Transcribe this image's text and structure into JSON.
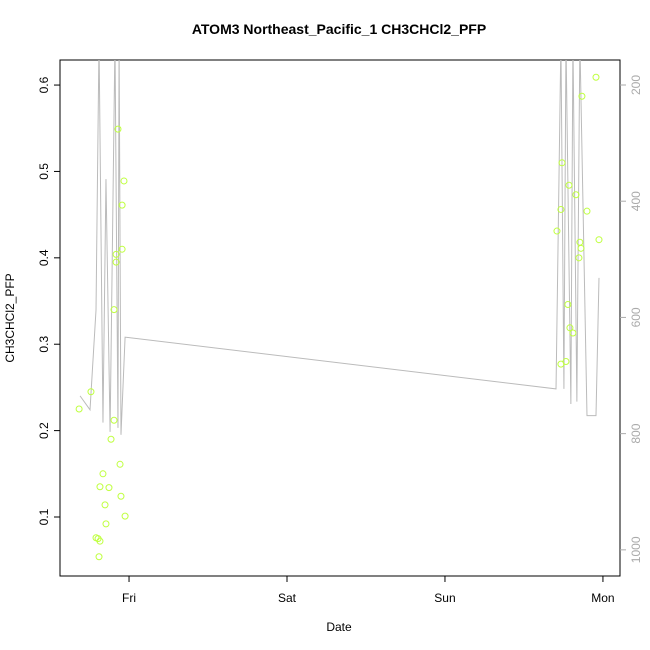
{
  "chart_data": {
    "type": "scatter",
    "title": "ATOM3 Northeast_Pacific_1 CH3CHCl2_PFP",
    "x_label": "Date",
    "y_label": "CH3CHCl2_PFP",
    "xlim": [
      -0.437,
      3.108
    ],
    "xticks": [
      {
        "value": 0,
        "label": "Fri"
      },
      {
        "value": 1,
        "label": "Sat"
      },
      {
        "value": 2,
        "label": "Sun"
      },
      {
        "value": 3,
        "label": "Mon"
      }
    ],
    "ylim": [
      0.0317,
      0.629
    ],
    "yticks": [
      0.1,
      0.2,
      0.3,
      0.4,
      0.5,
      0.6
    ],
    "y2lim": [
      1045,
      157
    ],
    "y2ticks": [
      200,
      400,
      600,
      800,
      1000
    ],
    "y2_color": "#aaaaaa",
    "series": [
      {
        "type": "scatter",
        "color": "#bfff3f",
        "x": [
          -0.316,
          -0.241,
          -0.209,
          -0.196,
          -0.19,
          -0.184,
          -0.184,
          -0.165,
          -0.152,
          -0.146,
          -0.127,
          -0.114,
          -0.095,
          -0.095,
          -0.082,
          -0.082,
          -0.07,
          -0.057,
          -0.051,
          -0.044,
          -0.044,
          -0.032,
          -0.025,
          2.709,
          2.734,
          2.734,
          2.741,
          2.766,
          2.778,
          2.785,
          2.791,
          2.81,
          2.829,
          2.848,
          2.854,
          2.861,
          2.867,
          2.899,
          2.956,
          2.975
        ],
        "values": [
          0.225,
          0.245,
          0.076,
          0.075,
          0.054,
          0.072,
          0.135,
          0.15,
          0.114,
          0.092,
          0.134,
          0.19,
          0.212,
          0.34,
          0.395,
          0.404,
          0.549,
          0.161,
          0.124,
          0.41,
          0.461,
          0.489,
          0.101,
          0.431,
          0.277,
          0.456,
          0.51,
          0.28,
          0.346,
          0.484,
          0.319,
          0.313,
          0.473,
          0.4,
          0.418,
          0.411,
          0.587,
          0.454,
          0.609,
          0.421
        ]
      },
      {
        "type": "line",
        "axis": "y2",
        "color": "#bbbbbb",
        "x": [
          -0.31,
          -0.247,
          -0.209,
          -0.19,
          -0.165,
          -0.146,
          -0.12,
          -0.089,
          -0.07,
          -0.063,
          -0.051,
          -0.025,
          2.703,
          2.734,
          2.753,
          2.766,
          2.797,
          2.81,
          2.835,
          2.854,
          2.899,
          2.956,
          2.975
        ],
        "values": [
          735,
          759,
          587,
          123,
          781,
          362,
          797,
          123,
          790,
          123,
          802,
          634,
          723,
          123,
          723,
          123,
          749,
          123,
          745,
          123,
          769,
          769,
          532
        ]
      }
    ]
  }
}
